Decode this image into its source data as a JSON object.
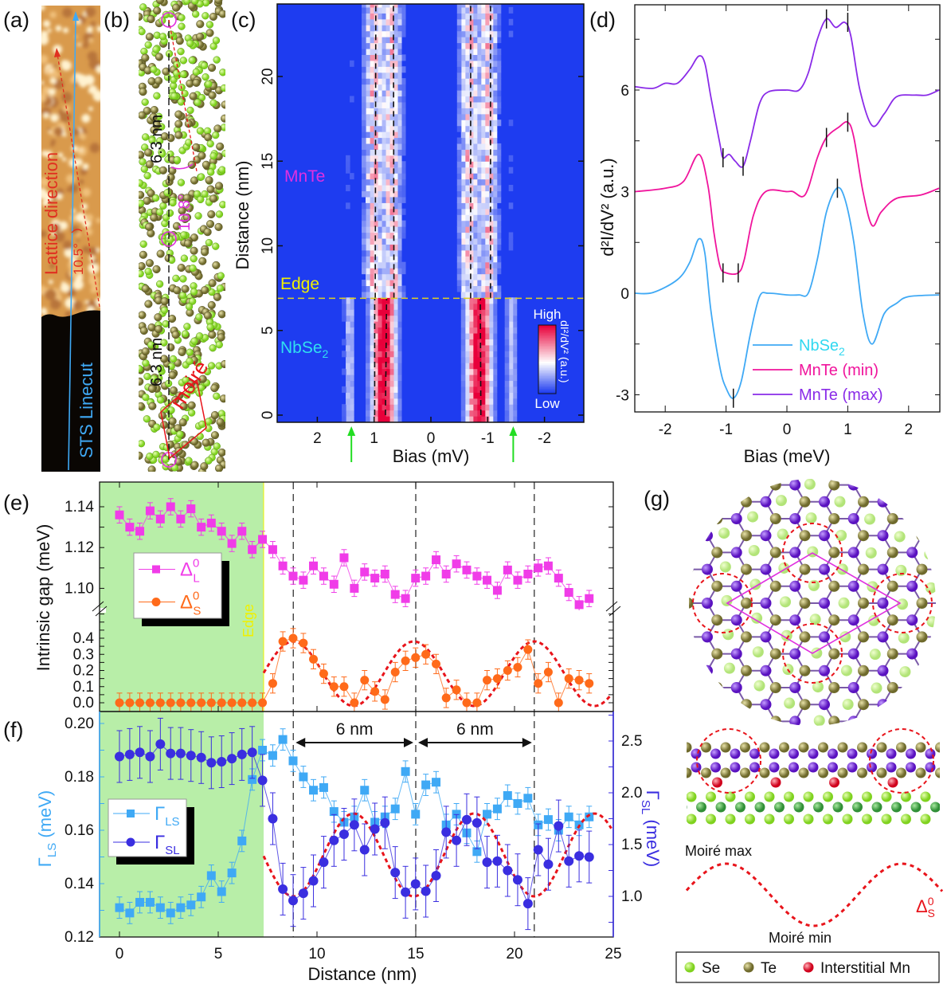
{
  "panel_labels": {
    "a": "(a)",
    "b": "(b)",
    "c": "(c)",
    "d": "(d)",
    "e": "(e)",
    "f": "(f)",
    "g": "(g)"
  },
  "panel_a": {
    "lattice_direction": "Lattice direction",
    "angle": "10.5°",
    "linecut": "STS Linecut"
  },
  "panel_b": {
    "spacing_top": "6.3 nm",
    "spacing_bottom": "6.3 nm",
    "angle": "10.8°",
    "moire": "moiré"
  },
  "panel_g": {
    "moire_max": "Moiré max",
    "moire_min": "Moiré min",
    "delta_label": {
      "symbol": "Δ",
      "sup": "0",
      "sub": "S"
    },
    "legend": [
      {
        "label": "Se",
        "color": "#8fe03a"
      },
      {
        "label": "Te",
        "color": "#7f7a35"
      },
      {
        "label": "Interstitial Mn",
        "color": "#e0102a"
      }
    ],
    "colors": {
      "mn_layer": "#6a1bd0",
      "nb": "#3a9a3a"
    }
  },
  "chart_data": [
    {
      "panel": "c",
      "type": "heatmap",
      "xlabel": "Bias (mV)",
      "ylabel": "Distance (nm)",
      "xlim": [
        2.7,
        -2.7
      ],
      "ylim": [
        -0.75,
        24.3
      ],
      "xticks": [
        "2",
        "1",
        "0",
        "-1",
        "-2"
      ],
      "xtick_values": [
        2,
        1,
        0,
        -1,
        -2
      ],
      "yticks": [
        "0",
        "5",
        "10",
        "15",
        "20"
      ],
      "ytick_values": [
        0,
        5,
        10,
        15,
        20
      ],
      "edge_distance": 6.9,
      "region_labels": {
        "mnte": "MnTe",
        "edge": "Edge",
        "nbse": {
          "text": "NbSe",
          "sub": "2"
        }
      },
      "nbse2_peaks_mV": [
        0.8,
        -0.88
      ],
      "nbse2_side_peaks_mV": [
        1.4,
        -1.45
      ],
      "mnte_peaks_mV": [
        0.98,
        0.65,
        -0.7,
        -1.05
      ],
      "colorbar": {
        "high": "High",
        "low": "Low",
        "label": "dI²/dV² (a.u.)",
        "colors": [
          "#1e3cf0",
          "#ffffff",
          "#e8003a"
        ]
      },
      "arrows_mV": [
        1.4,
        -1.45
      ]
    },
    {
      "panel": "d",
      "type": "line",
      "xlabel": "Bias (meV)",
      "ylabel": "d²I/dV² (a.u.)",
      "xlim": [
        -2.5,
        2.5
      ],
      "ylim": [
        -3.5,
        8.5
      ],
      "xticks": [
        "-2",
        "-1",
        "0",
        "1",
        "2"
      ],
      "xtick_values": [
        -2,
        -1,
        0,
        1,
        2
      ],
      "yticks": [
        "-3",
        "0",
        "3",
        "6"
      ],
      "ytick_values": [
        -3,
        0,
        3,
        6
      ],
      "legend_position": "bottom-right",
      "series": [
        {
          "label": {
            "text": "NbSe",
            "sub": "2"
          },
          "color": "#3fa9f5",
          "points": [
            [
              -2.5,
              0
            ],
            [
              -2.2,
              0.02
            ],
            [
              -1.8,
              0.4
            ],
            [
              -1.6,
              0.9
            ],
            [
              -1.45,
              1.6
            ],
            [
              -1.35,
              1.2
            ],
            [
              -1.25,
              -0.5
            ],
            [
              -1.1,
              -2.2
            ],
            [
              -1.0,
              -2.8
            ],
            [
              -0.88,
              -3.1
            ],
            [
              -0.75,
              -2.6
            ],
            [
              -0.6,
              -1.2
            ],
            [
              -0.45,
              -0.1
            ],
            [
              -0.3,
              0.0
            ],
            [
              0,
              -0.05
            ],
            [
              0.2,
              -0.05
            ],
            [
              0.35,
              0.0
            ],
            [
              0.5,
              1.0
            ],
            [
              0.65,
              2.4
            ],
            [
              0.82,
              3.1
            ],
            [
              0.95,
              2.8
            ],
            [
              1.1,
              1.5
            ],
            [
              1.25,
              -0.6
            ],
            [
              1.4,
              -1.5
            ],
            [
              1.6,
              -0.6
            ],
            [
              1.8,
              -0.3
            ],
            [
              2.0,
              -0.1
            ],
            [
              2.5,
              -0.05
            ]
          ],
          "markers": [
            [
              -0.88,
              -3.1
            ],
            [
              0.83,
              3.1
            ]
          ]
        },
        {
          "label": {
            "text": "MnTe (min)",
            "sub": ""
          },
          "color": "#f0149c",
          "points": [
            [
              -2.5,
              3.0
            ],
            [
              -2.0,
              3.1
            ],
            [
              -1.7,
              3.3
            ],
            [
              -1.45,
              4.1
            ],
            [
              -1.3,
              3.2
            ],
            [
              -1.2,
              1.8
            ],
            [
              -1.1,
              0.8
            ],
            [
              -1.0,
              0.6
            ],
            [
              -0.8,
              0.6
            ],
            [
              -0.7,
              1.0
            ],
            [
              -0.55,
              2.3
            ],
            [
              -0.35,
              3.0
            ],
            [
              0,
              3.0
            ],
            [
              0.1,
              3.0
            ],
            [
              0.25,
              2.85
            ],
            [
              0.35,
              3.1
            ],
            [
              0.5,
              4.0
            ],
            [
              0.65,
              4.6
            ],
            [
              0.85,
              4.9
            ],
            [
              1.0,
              5.05
            ],
            [
              1.1,
              4.6
            ],
            [
              1.25,
              3.0
            ],
            [
              1.4,
              2.0
            ],
            [
              1.55,
              2.4
            ],
            [
              1.8,
              2.8
            ],
            [
              2.2,
              2.9
            ],
            [
              2.5,
              3.1
            ]
          ],
          "markers": [
            [
              -1.05,
              0.6
            ],
            [
              -0.8,
              0.6
            ],
            [
              0.65,
              4.6
            ],
            [
              1.0,
              5.05
            ]
          ]
        },
        {
          "label": {
            "text": "MnTe (max)",
            "sub": ""
          },
          "color": "#8a2be8",
          "points": [
            [
              -2.5,
              6.1
            ],
            [
              -2.2,
              6.05
            ],
            [
              -2.0,
              6.2
            ],
            [
              -1.8,
              6.2
            ],
            [
              -1.6,
              6.6
            ],
            [
              -1.45,
              7.0
            ],
            [
              -1.35,
              6.8
            ],
            [
              -1.25,
              5.8
            ],
            [
              -1.1,
              4.4
            ],
            [
              -1.05,
              4.0
            ],
            [
              -0.95,
              4.1
            ],
            [
              -0.85,
              3.9
            ],
            [
              -0.72,
              3.75
            ],
            [
              -0.6,
              4.5
            ],
            [
              -0.45,
              5.6
            ],
            [
              -0.3,
              5.95
            ],
            [
              0,
              6.0
            ],
            [
              0.2,
              6.0
            ],
            [
              0.35,
              6.5
            ],
            [
              0.5,
              7.5
            ],
            [
              0.65,
              8.1
            ],
            [
              0.8,
              7.85
            ],
            [
              0.95,
              8.0
            ],
            [
              1.05,
              7.6
            ],
            [
              1.2,
              6.0
            ],
            [
              1.4,
              4.95
            ],
            [
              1.6,
              5.3
            ],
            [
              1.8,
              5.8
            ],
            [
              2.1,
              5.85
            ],
            [
              2.3,
              5.85
            ],
            [
              2.5,
              6.0
            ]
          ],
          "markers": [
            [
              -1.05,
              4.0
            ],
            [
              -0.72,
              3.75
            ],
            [
              0.65,
              8.1
            ],
            [
              1.0,
              8.0
            ]
          ]
        }
      ]
    },
    {
      "panel": "e",
      "type": "scatter",
      "ylabel": "Intrinsic gap (meV)",
      "xlim": [
        -1,
        25
      ],
      "ylim_upper": [
        1.09,
        1.152
      ],
      "ylim_lower": [
        -0.055,
        0.573
      ],
      "yticks_upper": [
        "1.10",
        "1.12",
        "1.14"
      ],
      "ytick_values_upper": [
        1.1,
        1.12,
        1.14
      ],
      "yticks_lower": [
        "0.0",
        "0.1",
        "0.2",
        "0.3",
        "0.4"
      ],
      "ytick_values_lower": [
        0,
        0.1,
        0.2,
        0.3,
        0.4
      ],
      "edge_label": "Edge",
      "edge_x": 7.3,
      "vlines_x": [
        8.8,
        15,
        21
      ],
      "legend_position": "left",
      "x": [
        0,
        0.52,
        1.03,
        1.55,
        2.07,
        2.59,
        3.1,
        3.62,
        4.14,
        4.65,
        5.17,
        5.69,
        6.2,
        6.72,
        7.24,
        7.76,
        8.27,
        8.79,
        9.31,
        9.82,
        10.34,
        10.86,
        11.37,
        11.89,
        12.41,
        12.93,
        13.44,
        13.96,
        14.48,
        14.99,
        15.51,
        16.03,
        16.54,
        17.06,
        17.58,
        18.1,
        18.61,
        19.13,
        19.65,
        20.16,
        20.68,
        21.2,
        21.71,
        22.23,
        22.75,
        23.27,
        23.78
      ],
      "series": [
        {
          "label": {
            "symbol": "Δ",
            "sup": "0",
            "sub": "L"
          },
          "color": "#f03ce8",
          "marker": "square",
          "error": 0.004,
          "values": [
            1.136,
            1.13,
            1.128,
            1.138,
            1.134,
            1.14,
            1.134,
            1.139,
            1.13,
            1.132,
            1.128,
            1.122,
            1.128,
            1.119,
            1.124,
            1.119,
            1.111,
            1.106,
            1.104,
            1.111,
            1.106,
            1.102,
            1.115,
            1.1,
            1.108,
            1.105,
            1.107,
            1.097,
            1.095,
            1.105,
            1.106,
            1.114,
            1.107,
            1.112,
            1.109,
            1.106,
            1.104,
            1.099,
            1.109,
            1.104,
            1.107,
            1.11,
            1.111,
            1.105,
            1.098,
            1.092,
            1.095
          ]
        },
        {
          "label": {
            "symbol": "Δ",
            "sup": "0",
            "sub": "S"
          },
          "color": "#ff6a1a",
          "marker": "circle",
          "error": 0.06,
          "values": [
            0,
            0,
            0,
            0,
            0,
            0,
            0,
            0,
            0,
            0,
            0,
            0,
            0,
            0,
            0,
            0.12,
            0.38,
            0.4,
            0.37,
            0.27,
            0.18,
            0.1,
            0.1,
            0.0,
            0.14,
            0.07,
            0.02,
            0.19,
            0.26,
            0.28,
            0.3,
            0.24,
            0.03,
            0.08,
            0.0,
            0.0,
            0.14,
            0.15,
            0.2,
            0.22,
            0.33,
            0.12,
            0.19,
            0.0,
            0.15,
            0.14,
            0.12
          ]
        }
      ],
      "fit": {
        "color": "#e8141b",
        "series": "S",
        "offset": 0.18,
        "amplitude": 0.2,
        "period_nm": 6.1,
        "peak_nm": 8.8,
        "x_range": [
          7.3,
          25
        ]
      }
    },
    {
      "panel": "f",
      "type": "scatter",
      "xlabel": "Distance (nm)",
      "ylabel_left": {
        "symbol": "Γ",
        "sub": "LS",
        "unit": " (meV)"
      },
      "ylabel_right": {
        "symbol": "Γ",
        "sub": "SL",
        "unit": " (meV)"
      },
      "xlim": [
        -1,
        25
      ],
      "ylim_left": [
        0.12,
        0.2045
      ],
      "ylim_right": [
        0.61,
        2.78
      ],
      "xticks": [
        "0",
        "5",
        "10",
        "15",
        "20",
        "25"
      ],
      "xtick_values": [
        0,
        5,
        10,
        15,
        20,
        25
      ],
      "yticks_left": [
        "0.12",
        "0.14",
        "0.16",
        "0.18",
        "0.20"
      ],
      "ytick_values_left": [
        0.12,
        0.14,
        0.16,
        0.18,
        0.2
      ],
      "yticks_right": [
        "1.0",
        "1.5",
        "2.0",
        "2.5"
      ],
      "ytick_values_right": [
        1.0,
        1.5,
        2.0,
        2.5
      ],
      "period_annotations": [
        {
          "label": "6 nm",
          "from": 8.8,
          "to": 15
        },
        {
          "label": "6 nm",
          "from": 15,
          "to": 21
        }
      ],
      "legend_position": "left",
      "series": [
        {
          "label": {
            "symbol": "Γ",
            "sub": "LS"
          },
          "axis": "left",
          "color": "#3fa9f5",
          "marker": "square",
          "error": 0.004,
          "values": [
            0.131,
            0.129,
            0.133,
            0.133,
            0.131,
            0.129,
            0.131,
            0.132,
            0.135,
            0.143,
            0.137,
            0.144,
            0.156,
            0.179,
            0.19,
            0.188,
            0.194,
            0.186,
            0.18,
            0.175,
            0.176,
            0.167,
            0.163,
            0.165,
            0.175,
            0.163,
            0.165,
            0.168,
            0.182,
            0.166,
            0.177,
            0.178,
            0.162,
            0.166,
            0.159,
            0.152,
            0.166,
            0.168,
            0.173,
            0.17,
            0.172,
            0.162,
            0.164,
            0.16,
            0.165,
            0.162,
            0.165
          ]
        },
        {
          "label": {
            "symbol": "Γ",
            "sub": "SL"
          },
          "axis": "right",
          "color": "#3a2ee0",
          "marker": "circle",
          "error": 0.25,
          "values": [
            2.35,
            2.37,
            2.39,
            2.35,
            2.47,
            2.38,
            2.38,
            2.36,
            2.34,
            2.29,
            2.3,
            2.33,
            2.37,
            2.39,
            2.12,
            1.75,
            1.07,
            0.96,
            1.03,
            1.15,
            1.33,
            1.54,
            1.6,
            1.69,
            1.45,
            1.65,
            1.71,
            1.23,
            1.04,
            1.12,
            1.05,
            1.2,
            1.62,
            1.54,
            1.74,
            1.71,
            1.33,
            1.34,
            1.25,
            1.16,
            0.93,
            1.45,
            1.31,
            1.68,
            1.34,
            1.39,
            1.38
          ]
        }
      ],
      "fit": {
        "color": "#e8141b",
        "series": "SL",
        "offset": 1.4,
        "amplitude": -0.4,
        "period_nm": 6.1,
        "peak_nm": 8.8,
        "x_range": [
          7.3,
          25
        ]
      }
    }
  ]
}
